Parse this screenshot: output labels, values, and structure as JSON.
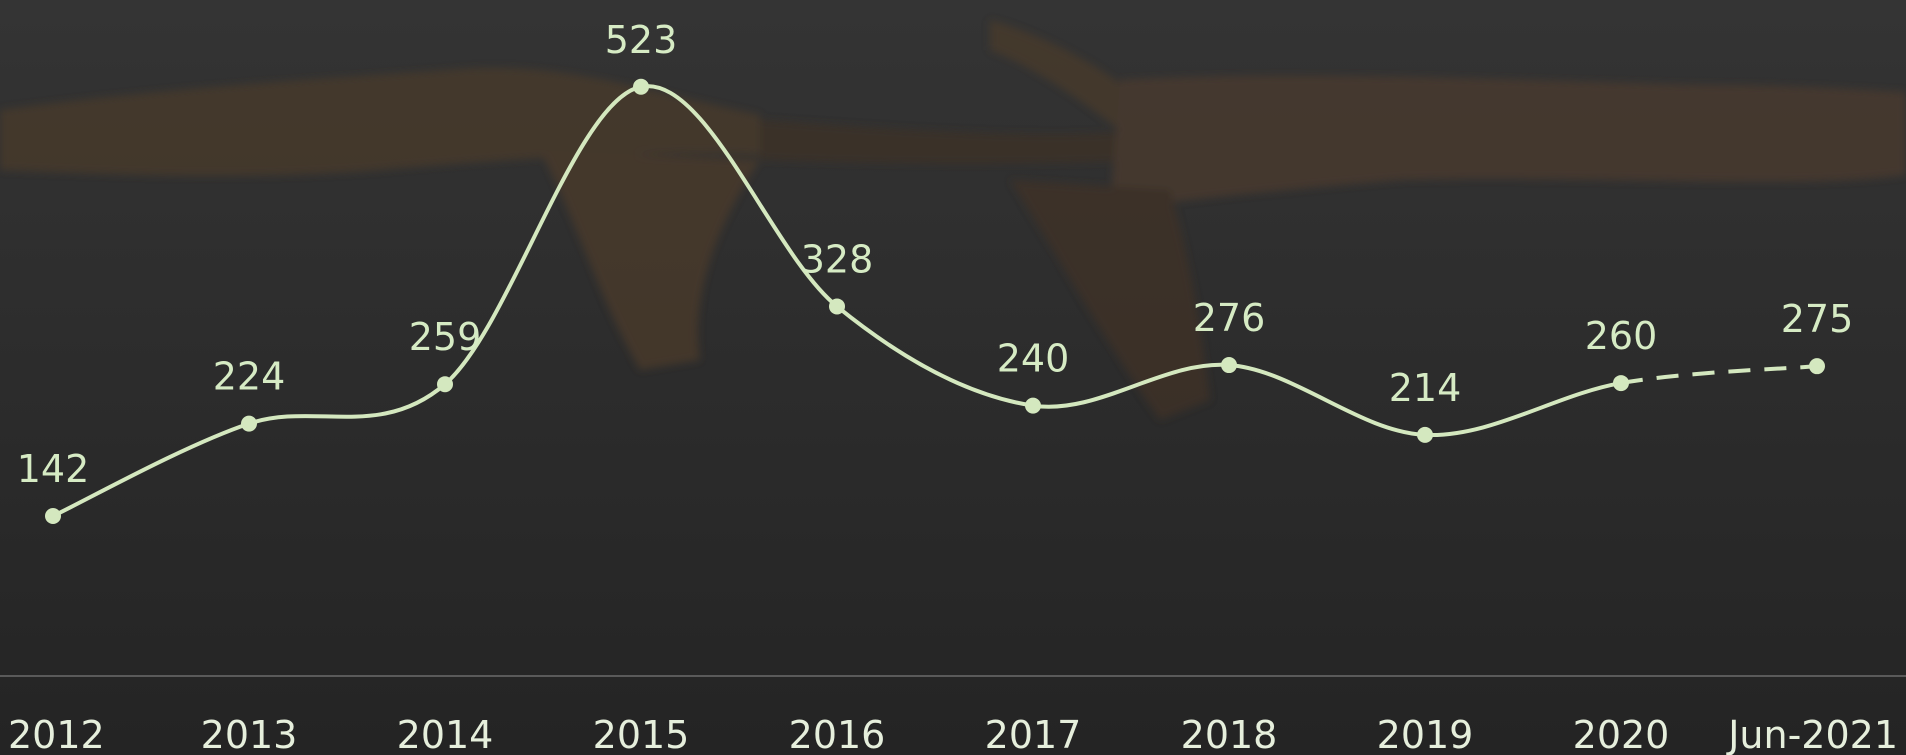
{
  "chart_data": {
    "type": "line",
    "categories": [
      "2012",
      "2013",
      "2014",
      "2015",
      "2016",
      "2017",
      "2018",
      "2019",
      "2020",
      "Jun-2021"
    ],
    "values": [
      142,
      224,
      259,
      523,
      328,
      240,
      276,
      214,
      260,
      275
    ],
    "color": "#d4e8bf",
    "last_segment_dashed": true,
    "ylim": [
      0,
      600
    ]
  }
}
